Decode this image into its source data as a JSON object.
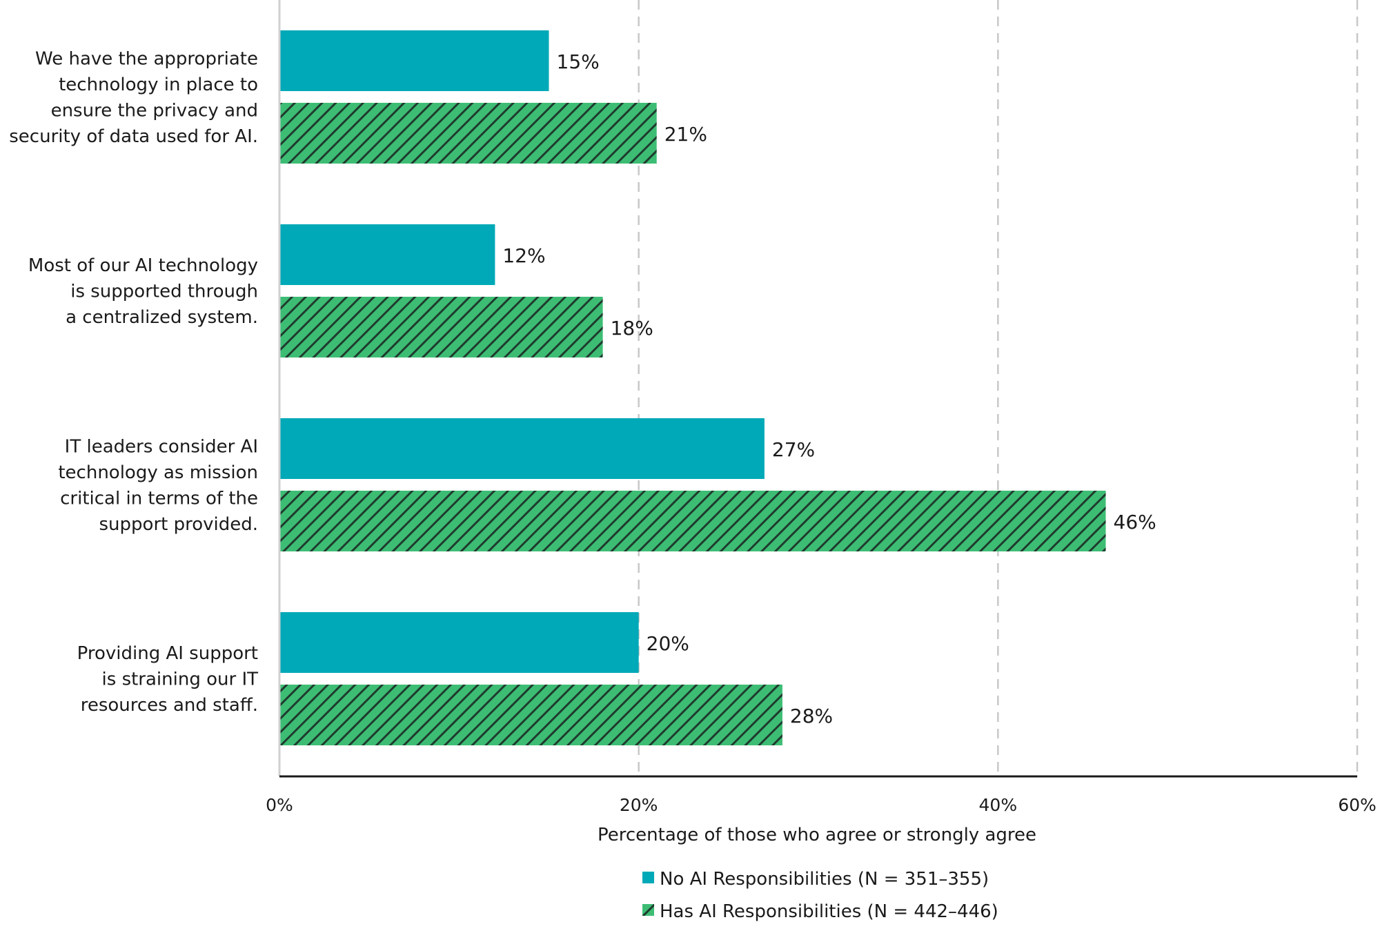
{
  "chart_data": {
    "type": "bar",
    "orientation": "horizontal",
    "categories": [
      [
        "We have the appropriate",
        "technology in place to",
        "ensure the privacy and",
        "security of data used for AI."
      ],
      [
        "Most of our AI technology",
        "is supported through",
        "a centralized system."
      ],
      [
        "IT leaders consider AI",
        "technology as mission",
        "critical in terms of the",
        "support provided."
      ],
      [
        "Providing AI support",
        "is straining our IT",
        "resources and staff."
      ]
    ],
    "series": [
      {
        "name": "No AI Responsibilities (N = 351–355)",
        "values": [
          15,
          12,
          27,
          20
        ],
        "labels": [
          "15%",
          "12%",
          "27%",
          "20%"
        ],
        "color": "#00a9b7",
        "pattern": "solid"
      },
      {
        "name": "Has AI Responsibilities (N = 442–446)",
        "values": [
          21,
          18,
          46,
          28
        ],
        "labels": [
          "21%",
          "18%",
          "46%",
          "28%"
        ],
        "color": "#3dbd74",
        "pattern": "diagonal-hatch"
      }
    ],
    "xlabel": "Percentage of those who agree or strongly agree",
    "xlim": [
      0,
      60
    ],
    "xticks": [
      0,
      20,
      40,
      60
    ],
    "xtick_labels": [
      "0%",
      "20%",
      "40%",
      "60%"
    ],
    "grid": "vertical-dashed",
    "legend_position": "bottom-center"
  }
}
